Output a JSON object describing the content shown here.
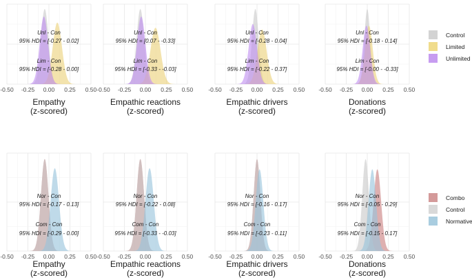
{
  "chart_data": [
    {
      "type": "area",
      "row": 0,
      "col": 0,
      "xlabel_line1": "Empathy",
      "xlabel_line2": "(z-scored)",
      "xlim": [
        -0.5,
        0.5
      ],
      "xticks": [
        "-0.50",
        "-0.25",
        "0.00",
        "0.25",
        "0.50"
      ],
      "xtick_values": [
        -0.5,
        -0.25,
        0,
        0.25,
        0.5
      ],
      "series": [
        {
          "name": "Control",
          "mean": -0.05,
          "sd": 0.045
        },
        {
          "name": "Limited",
          "mean": 0.1,
          "sd": 0.055
        },
        {
          "name": "Unlimited",
          "mean": -0.06,
          "sd": 0.05
        }
      ],
      "annotations": [
        {
          "label": "Unl - Con",
          "hdi": "95% HDI = [-0.27 - 0.02]"
        },
        {
          "label": "Lim - Con",
          "hdi": "95% HDI = [-0.28 - 0.00]"
        }
      ]
    },
    {
      "type": "area",
      "row": 0,
      "col": 1,
      "xlabel_line1": "Empathic reactions",
      "xlabel_line2": "(z-scored)",
      "xlim": [
        -0.5,
        0.5
      ],
      "xticks": [
        "-0.50",
        "-0.25",
        "0.00",
        "0.25",
        "0.50"
      ],
      "xtick_values": [
        -0.5,
        -0.25,
        0,
        0.25,
        0.5
      ],
      "series": [
        {
          "name": "Control",
          "mean": -0.06,
          "sd": 0.045
        },
        {
          "name": "Limited",
          "mean": 0.12,
          "sd": 0.06
        },
        {
          "name": "Unlimited",
          "mean": -0.05,
          "sd": 0.05
        }
      ],
      "annotations": [
        {
          "label": "Unl - Con",
          "hdi": "95% HDI = [0.07 - -0.33]"
        },
        {
          "label": "Lim - Con",
          "hdi": "95% HDI = [-0.33 - -0.03]"
        }
      ]
    },
    {
      "type": "area",
      "row": 0,
      "col": 2,
      "xlabel_line1": "Empathic drivers",
      "xlabel_line2": "(z-scored)",
      "xlim": [
        -0.5,
        0.5
      ],
      "xticks": [
        "-0.50",
        "-0.25",
        "0.00",
        "0.25",
        "0.50"
      ],
      "xtick_values": [
        -0.5,
        -0.25,
        0,
        0.25,
        0.5
      ],
      "series": [
        {
          "name": "Control",
          "mean": -0.02,
          "sd": 0.04
        },
        {
          "name": "Limited",
          "mean": 0.06,
          "sd": 0.055
        },
        {
          "name": "Unlimited",
          "mean": -0.05,
          "sd": 0.05
        }
      ],
      "annotations": [
        {
          "label": "Unl - Con",
          "hdi": "95% HDI = [-0.28 - 0.04]"
        },
        {
          "label": "Lim - Con",
          "hdi": "95% HDI = [-0.22 - 0.37]"
        }
      ]
    },
    {
      "type": "area",
      "row": 0,
      "col": 3,
      "xlabel_line1": "Donations",
      "xlabel_line2": "(z-scored)",
      "xlim": [
        -0.5,
        0.5
      ],
      "xticks": [
        "-0.50",
        "-0.25",
        "0.00",
        "0.25",
        "0.50"
      ],
      "xtick_values": [
        -0.5,
        -0.25,
        0,
        0.25,
        0.5
      ],
      "series": [
        {
          "name": "Control",
          "mean": 0.0,
          "sd": 0.035
        },
        {
          "name": "Limited",
          "mean": 0.02,
          "sd": 0.045
        },
        {
          "name": "Unlimited",
          "mean": -0.01,
          "sd": 0.045
        }
      ],
      "annotations": [
        {
          "label": "Unl - Con",
          "hdi": "95% HDI = [-0.18 - 0.14]"
        },
        {
          "label": "Lim - Con",
          "hdi": "95% HDI = [-0.00 - -0.33]"
        }
      ]
    },
    {
      "type": "area",
      "row": 1,
      "col": 0,
      "xlabel_line1": "Empathy",
      "xlabel_line2": "(z-scored)",
      "xlim": [
        -0.5,
        0.5
      ],
      "xticks": [
        "-0.50",
        "-0.25",
        "0.00",
        "0.25",
        "0.50"
      ],
      "xtick_values": [
        -0.5,
        -0.25,
        0,
        0.25,
        0.5
      ],
      "series": [
        {
          "name": "Combo",
          "mean": -0.05,
          "sd": 0.045
        },
        {
          "name": "Control",
          "mean": -0.05,
          "sd": 0.045
        },
        {
          "name": "Normative",
          "mean": 0.07,
          "sd": 0.05
        }
      ],
      "annotations": [
        {
          "label": "Nor - Con",
          "hdi": "95% HDI = [-0.17 - 0.13]"
        },
        {
          "label": "Com - Con",
          "hdi": "95% HDI = [-0.29 - 0.00]"
        }
      ]
    },
    {
      "type": "area",
      "row": 1,
      "col": 1,
      "xlabel_line1": "Empathic reactions",
      "xlabel_line2": "(z-scored)",
      "xlim": [
        -0.5,
        0.5
      ],
      "xticks": [
        "-0.50",
        "-0.25",
        "0.00",
        "0.25",
        "0.50"
      ],
      "xtick_values": [
        -0.5,
        -0.25,
        0,
        0.25,
        0.5
      ],
      "series": [
        {
          "name": "Combo",
          "mean": -0.06,
          "sd": 0.045
        },
        {
          "name": "Control",
          "mean": -0.06,
          "sd": 0.045
        },
        {
          "name": "Normative",
          "mean": 0.05,
          "sd": 0.05
        }
      ],
      "annotations": [
        {
          "label": "Nor - Con",
          "hdi": "95% HDI = [-0.22 - 0.08]"
        },
        {
          "label": "Com - Con",
          "hdi": "95% HDI = [-0.33 - -0.03]"
        }
      ]
    },
    {
      "type": "area",
      "row": 1,
      "col": 2,
      "xlabel_line1": "Empathic drivers",
      "xlabel_line2": "(z-scored)",
      "xlim": [
        -0.5,
        0.5
      ],
      "xticks": [
        "-0.50",
        "-0.25",
        "0.00",
        "0.25",
        "0.50"
      ],
      "xtick_values": [
        -0.5,
        -0.25,
        0,
        0.25,
        0.5
      ],
      "series": [
        {
          "name": "Combo",
          "mean": 0.0,
          "sd": 0.04
        },
        {
          "name": "Control",
          "mean": 0.0,
          "sd": 0.04
        },
        {
          "name": "Normative",
          "mean": 0.03,
          "sd": 0.045
        }
      ],
      "annotations": [
        {
          "label": "Nor - Con",
          "hdi": "95% HDI = [-0.16 - 0.17]"
        },
        {
          "label": "Com - Con",
          "hdi": "95% HDI = [-0.23 - 0.11]"
        }
      ]
    },
    {
      "type": "area",
      "row": 1,
      "col": 3,
      "xlabel_line1": "Donations",
      "xlabel_line2": "(z-scored)",
      "xlim": [
        -0.5,
        0.5
      ],
      "xticks": [
        "-0.50",
        "-0.25",
        "0.00",
        "0.25",
        "0.50"
      ],
      "xtick_values": [
        -0.5,
        -0.25,
        0,
        0.25,
        0.5
      ],
      "series": [
        {
          "name": "Combo",
          "mean": 0.12,
          "sd": 0.045
        },
        {
          "name": "Control",
          "mean": -0.02,
          "sd": 0.04
        },
        {
          "name": "Normative",
          "mean": 0.06,
          "sd": 0.045
        }
      ],
      "annotations": [
        {
          "label": "Nor - Con",
          "hdi": "95% HDI = [-0.05 - 0.29]"
        },
        {
          "label": "Com - Con",
          "hdi": "95% HDI = [-0.15 - 0.17]"
        }
      ]
    }
  ],
  "legends": [
    {
      "row": 0,
      "entries": [
        {
          "name": "Control",
          "color": "#d3d3d3"
        },
        {
          "name": "Limited",
          "color": "#f0dc8c"
        },
        {
          "name": "Unlimited",
          "color": "#c79cf0"
        }
      ]
    },
    {
      "row": 1,
      "entries": [
        {
          "name": "Combo",
          "color": "#d49a9a"
        },
        {
          "name": "Control",
          "color": "#d9d9d9"
        },
        {
          "name": "Normative",
          "color": "#a9cde0"
        }
      ]
    }
  ],
  "series_colors": {
    "Control": "#c9c9c9",
    "Limited": "#ecd27a",
    "Unlimited": "#c08ff0",
    "Combo": "#c97f7f",
    "Normative": "#98c4dc"
  }
}
